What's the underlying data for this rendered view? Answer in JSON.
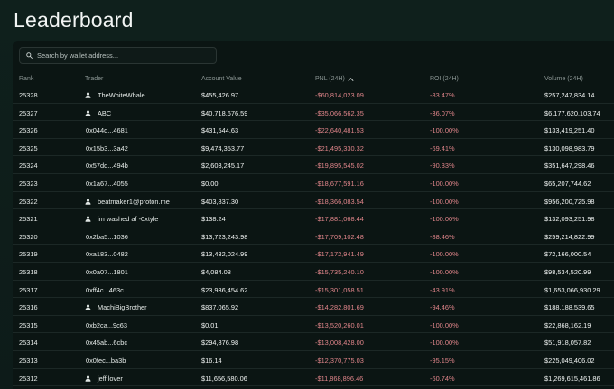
{
  "page": {
    "title": "Leaderboard"
  },
  "search": {
    "placeholder": "Search by wallet address..."
  },
  "columns": {
    "rank": "Rank",
    "trader": "Trader",
    "account_value": "Account Value",
    "pnl": "PNL (24H)",
    "roi": "ROI (24H)",
    "volume": "Volume (24H)"
  },
  "sort": {
    "column": "pnl",
    "direction": "ascending",
    "icon": "chevron-up-icon"
  },
  "colors": {
    "negative": "#e0858a",
    "background": "#0b1513"
  },
  "rows": [
    {
      "rank": "25328",
      "trader": "TheWhiteWhale",
      "named": true,
      "account_value": "$455,426.97",
      "pnl": "-$60,814,023.09",
      "roi": "-83.47%",
      "volume": "$257,247,834.14"
    },
    {
      "rank": "25327",
      "trader": "ABC",
      "named": true,
      "account_value": "$40,718,676.59",
      "pnl": "-$35,066,562.35",
      "roi": "-36.07%",
      "volume": "$6,177,620,103.74"
    },
    {
      "rank": "25326",
      "trader": "0x044d...4681",
      "named": false,
      "account_value": "$431,544.63",
      "pnl": "-$22,640,481.53",
      "roi": "-100.00%",
      "volume": "$133,419,251.40"
    },
    {
      "rank": "25325",
      "trader": "0x15b3...3a42",
      "named": false,
      "account_value": "$9,474,353.77",
      "pnl": "-$21,495,330.32",
      "roi": "-69.41%",
      "volume": "$130,098,983.79"
    },
    {
      "rank": "25324",
      "trader": "0x57dd...494b",
      "named": false,
      "account_value": "$2,603,245.17",
      "pnl": "-$19,895,545.02",
      "roi": "-90.33%",
      "volume": "$351,647,298.46"
    },
    {
      "rank": "25323",
      "trader": "0x1a67...4055",
      "named": false,
      "account_value": "$0.00",
      "pnl": "-$18,677,591.16",
      "roi": "-100.00%",
      "volume": "$65,207,744.62"
    },
    {
      "rank": "25322",
      "trader": "beatmaker1@proton.me",
      "named": true,
      "account_value": "$403,837.30",
      "pnl": "-$18,366,083.54",
      "roi": "-100.00%",
      "volume": "$956,200,725.98"
    },
    {
      "rank": "25321",
      "trader": "im washed af -0xtyle",
      "named": true,
      "account_value": "$138.24",
      "pnl": "-$17,881,068.44",
      "roi": "-100.00%",
      "volume": "$132,093,251.98"
    },
    {
      "rank": "25320",
      "trader": "0x2ba5...1036",
      "named": false,
      "account_value": "$13,723,243.98",
      "pnl": "-$17,709,102.48",
      "roi": "-88.46%",
      "volume": "$259,214,822.99"
    },
    {
      "rank": "25319",
      "trader": "0xa183...0482",
      "named": false,
      "account_value": "$13,432,024.99",
      "pnl": "-$17,172,941.49",
      "roi": "-100.00%",
      "volume": "$72,166,000.54"
    },
    {
      "rank": "25318",
      "trader": "0x0a07...1801",
      "named": false,
      "account_value": "$4,084.08",
      "pnl": "-$15,735,240.10",
      "roi": "-100.00%",
      "volume": "$98,534,520.99"
    },
    {
      "rank": "25317",
      "trader": "0xff4c...463c",
      "named": false,
      "account_value": "$23,936,454.62",
      "pnl": "-$15,301,058.51",
      "roi": "-43.91%",
      "volume": "$1,653,066,930.29"
    },
    {
      "rank": "25316",
      "trader": "MachiBigBrother",
      "named": true,
      "account_value": "$837,065.92",
      "pnl": "-$14,282,801.69",
      "roi": "-94.46%",
      "volume": "$188,188,539.65"
    },
    {
      "rank": "25315",
      "trader": "0xb2ca...9c63",
      "named": false,
      "account_value": "$0.01",
      "pnl": "-$13,520,260.01",
      "roi": "-100.00%",
      "volume": "$22,868,162.19"
    },
    {
      "rank": "25314",
      "trader": "0x45ab...6cbc",
      "named": false,
      "account_value": "$294,876.98",
      "pnl": "-$13,008,428.00",
      "roi": "-100.00%",
      "volume": "$51,918,057.82"
    },
    {
      "rank": "25313",
      "trader": "0x0fec...ba3b",
      "named": false,
      "account_value": "$16.14",
      "pnl": "-$12,370,775.03",
      "roi": "-95.15%",
      "volume": "$225,049,406.02"
    },
    {
      "rank": "25312",
      "trader": "jeff lover",
      "named": true,
      "account_value": "$11,656,580.06",
      "pnl": "-$11,868,896.46",
      "roi": "-60.74%",
      "volume": "$1,269,615,461.86"
    }
  ]
}
